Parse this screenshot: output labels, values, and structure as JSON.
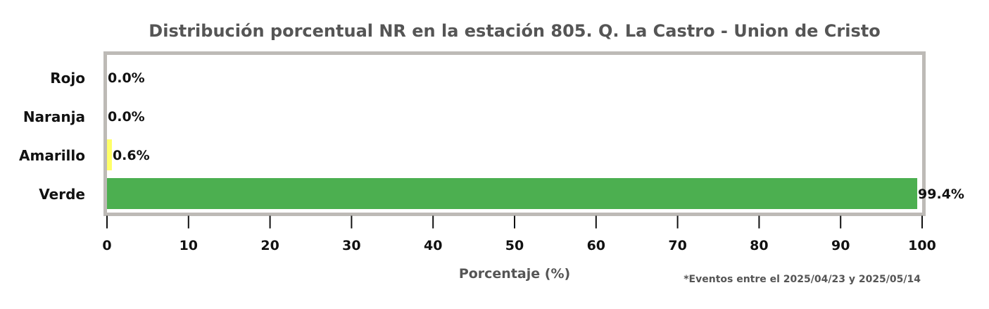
{
  "chart_data": {
    "type": "bar",
    "orientation": "horizontal",
    "title": "Distribución porcentual NR en la estación 805. Q. La Castro - Union de Cristo",
    "xlabel": "Porcentaje (%)",
    "ylabel": "",
    "categories": [
      "Rojo",
      "Naranja",
      "Amarillo",
      "Verde"
    ],
    "values": [
      0.0,
      0.0,
      0.6,
      99.4
    ],
    "data_labels": [
      "0.0%",
      "0.0%",
      "0.6%",
      "99.4%"
    ],
    "colors": [
      "#e53935",
      "#ff9800",
      "#ffff66",
      "#4caf50"
    ],
    "xlim": [
      0,
      100
    ],
    "xticks": [
      0,
      10,
      20,
      30,
      40,
      50,
      60,
      70,
      80,
      90,
      100
    ],
    "grid": false,
    "legend": "none"
  },
  "footnote": "*Eventos entre el 2025/04/23 y 2025/05/14",
  "style": {
    "frame_color": "#bdbab6",
    "text_dark": "#111111",
    "text_muted": "#555555"
  }
}
